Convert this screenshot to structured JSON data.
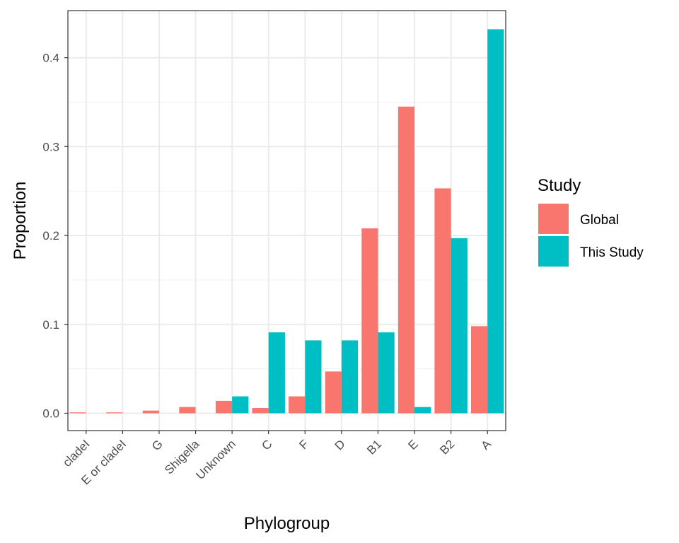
{
  "chart_data": {
    "type": "bar",
    "title": "",
    "xlabel": "Phylogroup",
    "ylabel": "Proportion",
    "categories": [
      "cladeI",
      "E or cladeI",
      "G",
      "Shigella",
      "Unknown",
      "C",
      "F",
      "D",
      "B1",
      "E",
      "B2",
      "A"
    ],
    "series": [
      {
        "name": "Global",
        "color": "#F8766D",
        "values": [
          0.001,
          0.001,
          0.003,
          0.007,
          0.014,
          0.006,
          0.019,
          0.047,
          0.208,
          0.345,
          0.253,
          0.098
        ]
      },
      {
        "name": "This Study",
        "color": "#00BFC4",
        "values": [
          0,
          0,
          0,
          0,
          0.019,
          0.091,
          0.082,
          0.082,
          0.091,
          0.007,
          0.197,
          0.432
        ]
      }
    ],
    "ylim": [
      -0.0195,
      0.453
    ],
    "yticks": [
      "0.0",
      "0.1",
      "0.2",
      "0.3",
      "0.4"
    ],
    "grid": true,
    "legend": {
      "title": "Study",
      "position": "right"
    }
  }
}
